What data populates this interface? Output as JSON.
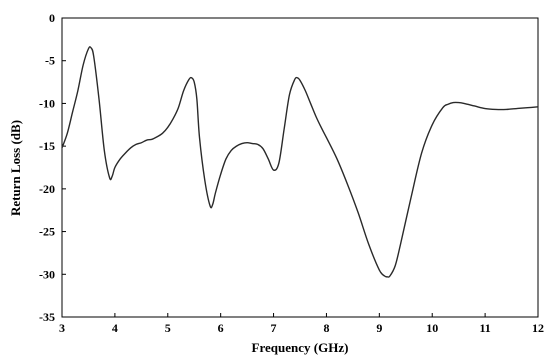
{
  "chart_data": {
    "type": "line",
    "title": "",
    "xlabel": "Frequency (GHz)",
    "ylabel": "Return Loss (dB)",
    "xlim": [
      3,
      12
    ],
    "ylim": [
      -35,
      0
    ],
    "xticks": [
      3,
      4,
      5,
      6,
      7,
      8,
      9,
      10,
      11,
      12
    ],
    "xtick_labels": [
      "3",
      "4",
      "5",
      "6",
      "7",
      "8",
      "9",
      "10",
      "11",
      "12"
    ],
    "yticks": [
      0,
      -5,
      -10,
      -15,
      -20,
      -25,
      -30,
      -35
    ],
    "ytick_labels": [
      "0",
      "-5",
      "-10",
      "-15",
      "-20",
      "-25",
      "-30",
      "-35"
    ],
    "grid": false,
    "series": [
      {
        "color": "#2a2a2a",
        "x": [
          3.0,
          3.1,
          3.2,
          3.3,
          3.4,
          3.5,
          3.55,
          3.6,
          3.7,
          3.8,
          3.9,
          3.95,
          4.0,
          4.1,
          4.2,
          4.3,
          4.4,
          4.5,
          4.6,
          4.7,
          4.8,
          4.9,
          5.0,
          5.1,
          5.2,
          5.3,
          5.4,
          5.45,
          5.5,
          5.55,
          5.6,
          5.7,
          5.8,
          5.85,
          5.9,
          6.0,
          6.1,
          6.2,
          6.3,
          6.4,
          6.5,
          6.6,
          6.7,
          6.8,
          6.9,
          7.0,
          7.1,
          7.2,
          7.3,
          7.4,
          7.45,
          7.5,
          7.6,
          7.7,
          7.8,
          7.9,
          8.0,
          8.2,
          8.4,
          8.6,
          8.8,
          9.0,
          9.1,
          9.15,
          9.2,
          9.3,
          9.4,
          9.6,
          9.8,
          10.0,
          10.2,
          10.3,
          10.4,
          10.5,
          10.6,
          10.8,
          11.0,
          11.2,
          11.4,
          11.6,
          11.8,
          12.0
        ],
        "y": [
          -15.2,
          -13.5,
          -11.0,
          -8.5,
          -5.5,
          -3.6,
          -3.5,
          -4.5,
          -9.5,
          -15.5,
          -18.7,
          -18.5,
          -17.5,
          -16.5,
          -15.8,
          -15.2,
          -14.8,
          -14.6,
          -14.3,
          -14.2,
          -13.9,
          -13.5,
          -12.8,
          -11.8,
          -10.5,
          -8.5,
          -7.2,
          -7.0,
          -7.5,
          -9.5,
          -14.0,
          -19.0,
          -22.0,
          -21.8,
          -20.5,
          -18.3,
          -16.5,
          -15.5,
          -15.0,
          -14.7,
          -14.6,
          -14.7,
          -14.8,
          -15.3,
          -16.5,
          -17.8,
          -17.0,
          -13.0,
          -9.0,
          -7.2,
          -7.0,
          -7.3,
          -8.5,
          -10.0,
          -11.5,
          -12.8,
          -14.0,
          -16.5,
          -19.5,
          -22.8,
          -26.5,
          -29.5,
          -30.2,
          -30.3,
          -30.2,
          -29.0,
          -26.5,
          -21.0,
          -15.8,
          -12.5,
          -10.5,
          -10.1,
          -9.9,
          -9.9,
          -10.0,
          -10.3,
          -10.6,
          -10.7,
          -10.7,
          -10.6,
          -10.5,
          -10.4
        ]
      }
    ]
  }
}
